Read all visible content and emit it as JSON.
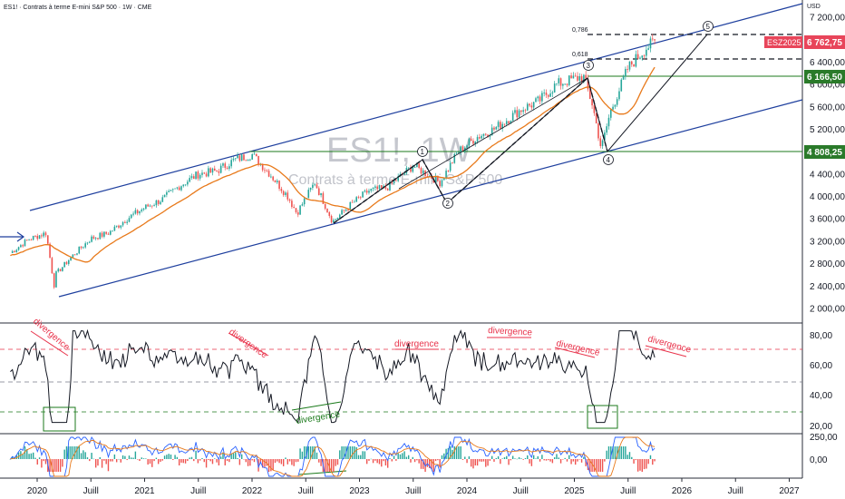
{
  "header": {
    "title": "ES1! · Contrats à terme E-mini S&P 500 · 1W · CME"
  },
  "watermark": {
    "symbol": "ES1!, 1W",
    "description": "Contrats à terme E-mini S&P 500"
  },
  "price_axis": {
    "unit": "USD",
    "ticks": [
      "7 200,00",
      "6 800,00",
      "6 400,00",
      "6 000,00",
      "5 600,00",
      "5 200,00",
      "4 400,00",
      "4 000,00",
      "3 600,00",
      "3 200,00",
      "2 800,00",
      "2 400,00",
      "2 000,00"
    ]
  },
  "price_tags": {
    "contract_label": "ESZ2025",
    "current_price": "6 762,75",
    "level_high": "6 166,50",
    "level_low": "4 808,25"
  },
  "fib_labels": [
    "0,786",
    "0,618"
  ],
  "waves": [
    "1",
    "2",
    "3",
    "4",
    "5"
  ],
  "rsi_axis": {
    "ticks": [
      "80,00",
      "60,00",
      "40,00",
      "20,00"
    ]
  },
  "macd_axis": {
    "ticks": [
      "250,00",
      "0,00"
    ]
  },
  "time_axis": {
    "ticks": [
      "2020",
      "Juill",
      "2021",
      "Juill",
      "2022",
      "Juill",
      "2023",
      "Juill",
      "2024",
      "Juill",
      "2025",
      "Juill",
      "2026",
      "Juill",
      "2027"
    ]
  },
  "annotations": {
    "divergence": "divergence",
    "divergence_count_red": 6,
    "divergence_count_green": 1
  },
  "colors": {
    "up": "#26a69a",
    "down": "#ef5350",
    "channel": "#1e3f9e",
    "ma": "#e8791a",
    "support": "#1b7a1b",
    "divergence_red": "#e8324a",
    "rsi": "#131722",
    "tag_red": "#e8455a",
    "tag_green": "#2a7a2a"
  },
  "chart_data": {
    "type": "candlestick",
    "timeframe": "1W",
    "series": [
      {
        "name": "ES1!",
        "points": [
          [
            "2019-10",
            2990
          ],
          [
            "2019-12",
            3230
          ],
          [
            "2020-01",
            3290
          ],
          [
            "2020-02",
            3350
          ],
          [
            "2020-03",
            2300
          ],
          [
            "2020-03",
            2600
          ],
          [
            "2020-05",
            2950
          ],
          [
            "2020-07",
            3250
          ],
          [
            "2020-09",
            3350
          ],
          [
            "2020-11",
            3600
          ],
          [
            "2021-01",
            3800
          ],
          [
            "2021-03",
            3950
          ],
          [
            "2021-05",
            4200
          ],
          [
            "2021-07",
            4400
          ],
          [
            "2021-09",
            4450
          ],
          [
            "2021-11",
            4650
          ],
          [
            "2022-01",
            4750
          ],
          [
            "2022-03",
            4400
          ],
          [
            "2022-05",
            4000
          ],
          [
            "2022-06",
            3700
          ],
          [
            "2022-08",
            4250
          ],
          [
            "2022-10",
            3550
          ],
          [
            "2022-12",
            3850
          ],
          [
            "2023-02",
            4100
          ],
          [
            "2023-04",
            4150
          ],
          [
            "2023-07",
            4550
          ],
          [
            "2023-10",
            4250
          ],
          [
            "2023-12",
            4800
          ],
          [
            "2024-02",
            5050
          ],
          [
            "2024-04",
            5200
          ],
          [
            "2024-07",
            5550
          ],
          [
            "2024-09",
            5700
          ],
          [
            "2024-11",
            6000
          ],
          [
            "2025-01",
            6100
          ],
          [
            "2025-02",
            6150
          ],
          [
            "2025-03",
            5650
          ],
          [
            "2025-04",
            4850
          ],
          [
            "2025-05",
            5500
          ],
          [
            "2025-07",
            6300
          ],
          [
            "2025-09",
            6650
          ],
          [
            "2025-10",
            6762.75
          ]
        ]
      },
      {
        "name": "RSI",
        "levels": [
          70,
          50,
          30
        ]
      }
    ],
    "horizontal_levels": [
      6166.5,
      4808.25
    ],
    "xlim": [
      "2019-09",
      "2027-02"
    ],
    "ylim": [
      1800,
      7500
    ]
  }
}
